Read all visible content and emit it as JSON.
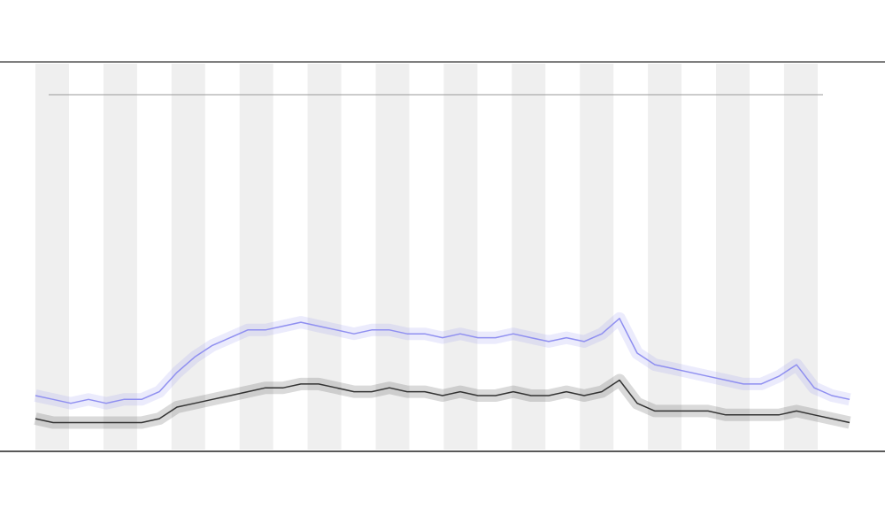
{
  "chart_data": {
    "type": "line",
    "x": [
      40,
      60,
      80,
      100,
      120,
      140,
      160,
      180,
      200,
      220,
      240,
      260,
      280,
      300,
      320,
      340,
      360,
      380,
      400,
      420,
      440,
      460,
      480,
      500,
      520,
      540,
      560,
      580,
      600,
      620,
      640,
      660,
      680,
      700,
      720,
      740,
      760,
      780,
      800,
      820,
      840,
      860,
      880,
      900,
      920,
      940,
      960
    ],
    "xlim": [
      40,
      960
    ],
    "ylim": [
      0,
      100
    ],
    "series": [
      {
        "color": "#8f8ff0",
        "values": [
          14,
          13,
          12,
          13,
          12,
          13,
          13,
          15,
          20,
          24,
          27,
          29,
          31,
          31,
          32,
          33,
          32,
          31,
          30,
          31,
          31,
          30,
          30,
          29,
          30,
          29,
          29,
          30,
          29,
          28,
          29,
          28,
          30,
          34,
          25,
          22,
          21,
          20,
          19,
          18,
          17,
          17,
          19,
          22,
          16,
          14,
          13
        ]
      },
      {
        "color": "#333333",
        "values": [
          8,
          7,
          7,
          7,
          7,
          7,
          7,
          8,
          11,
          12,
          13,
          14,
          15,
          16,
          16,
          17,
          17,
          16,
          15,
          15,
          16,
          15,
          15,
          14,
          15,
          14,
          14,
          15,
          14,
          14,
          15,
          14,
          15,
          18,
          12,
          10,
          10,
          10,
          10,
          9,
          9,
          9,
          9,
          10,
          9,
          8,
          7
        ]
      }
    ]
  }
}
